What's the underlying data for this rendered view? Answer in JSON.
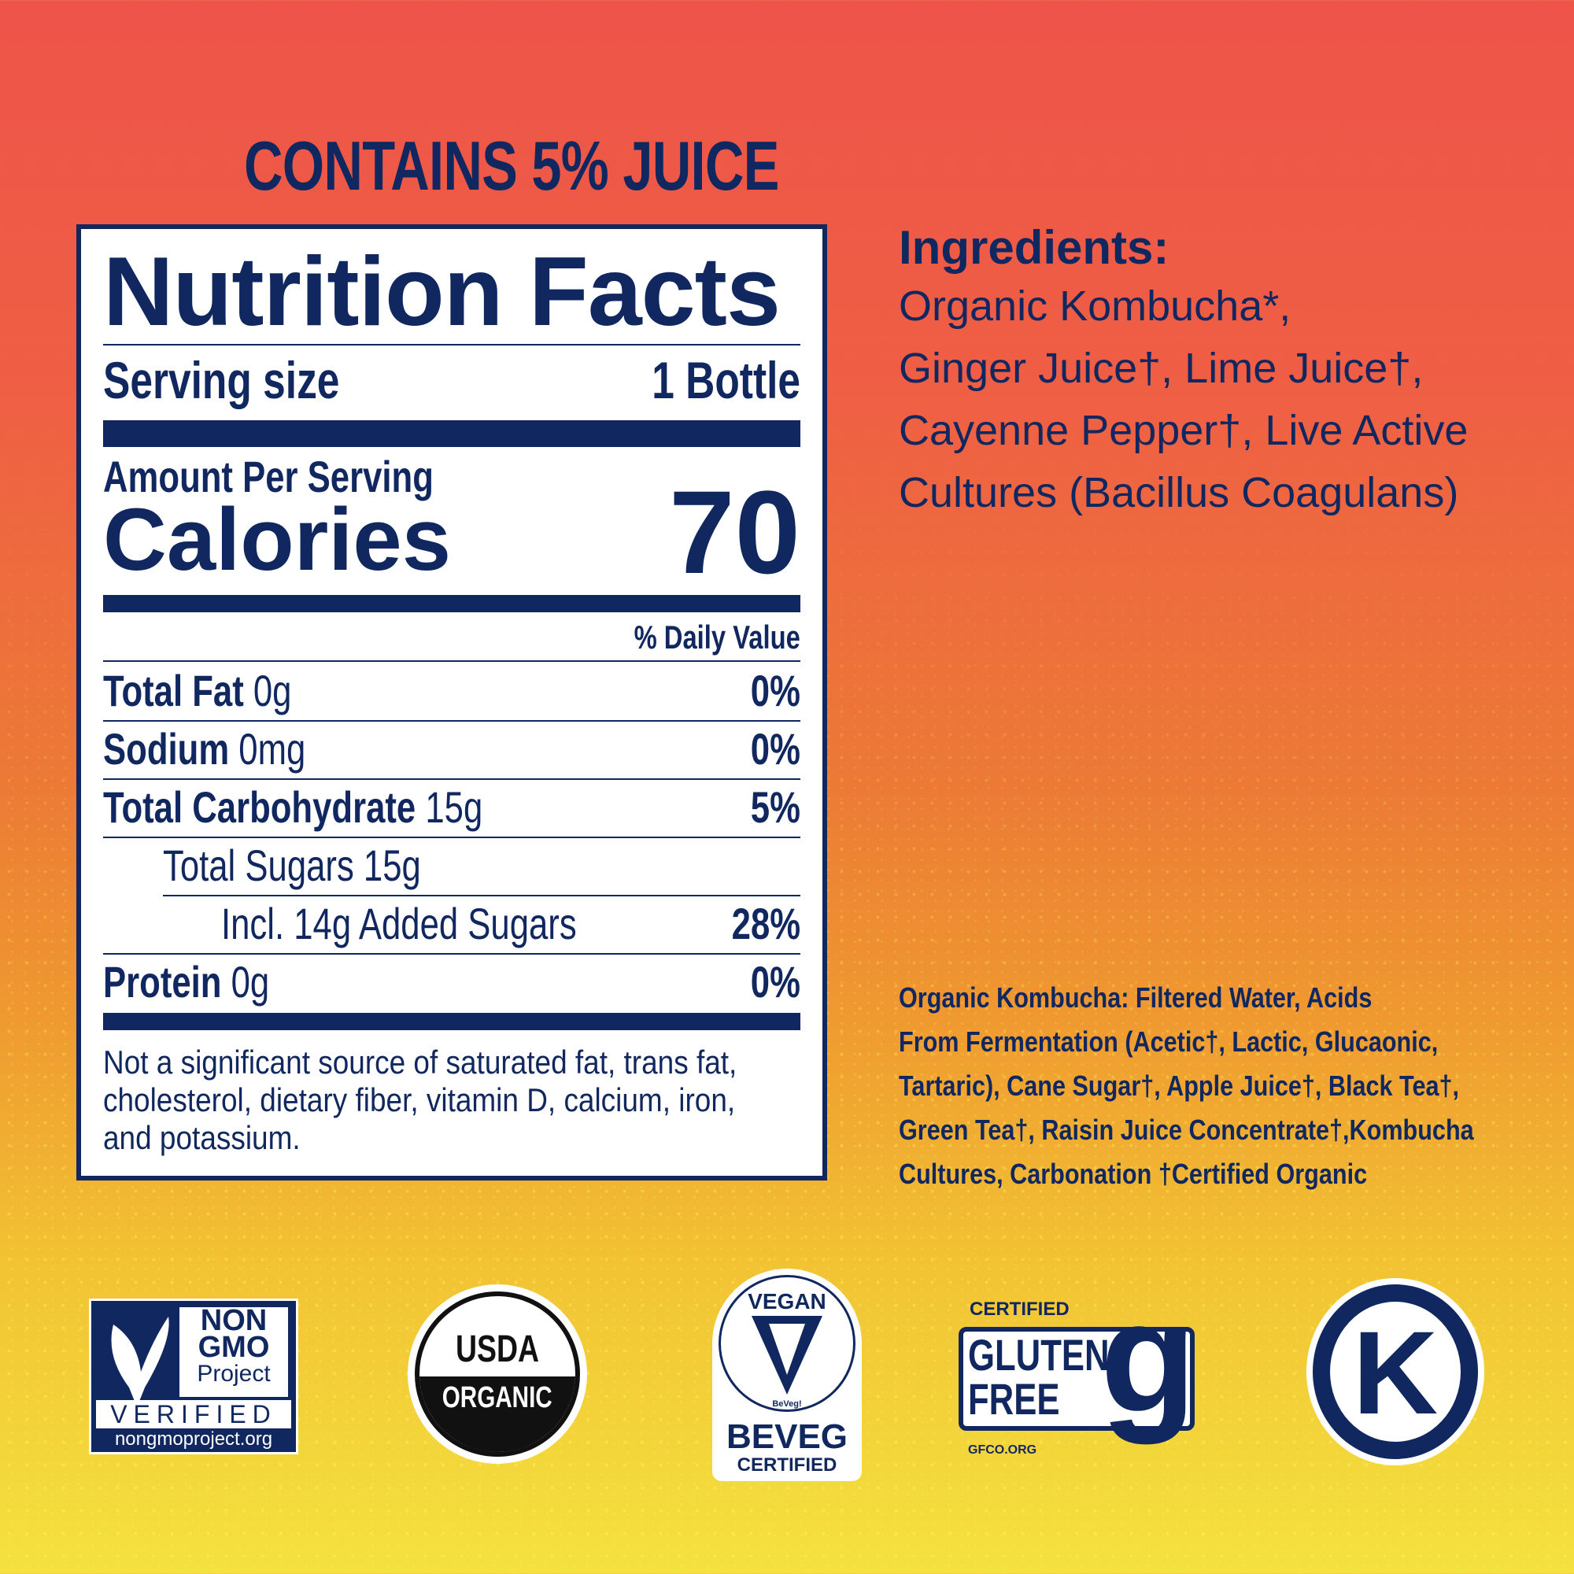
{
  "header": {
    "juice_claim": "CONTAINS 5% JUICE"
  },
  "nutrition": {
    "title": "Nutrition Facts",
    "serving_label": "Serving size",
    "serving_value": "1 Bottle",
    "amount_per_serving": "Amount Per Serving",
    "calories_label": "Calories",
    "calories_value": "70",
    "dv_header": "% Daily Value",
    "rows": [
      {
        "label": "Total Fat",
        "amount": "0g",
        "dv": "0%"
      },
      {
        "label": "Sodium",
        "amount": "0mg",
        "dv": "0%"
      },
      {
        "label": "Total Carbohydrate",
        "amount": "15g",
        "dv": "5%"
      },
      {
        "label": "Total Sugars 15g",
        "amount": "",
        "dv": ""
      },
      {
        "label": "Incl. 14g Added Sugars",
        "amount": "",
        "dv": "28%"
      },
      {
        "label": "Protein",
        "amount": "0g",
        "dv": "0%"
      }
    ],
    "footnote": [
      "Not a significant source of saturated fat, trans fat,",
      "cholesterol, dietary fiber, vitamin D, calcium, iron,",
      "and potassium."
    ]
  },
  "ingredients": {
    "heading": "Ingredients:",
    "lines": [
      "Organic Kombucha*,",
      "Ginger Juice†, Lime Juice†,",
      "Cayenne Pepper†, Live Active",
      "Cultures (Bacillus Coagulans)"
    ]
  },
  "kombucha_detail": [
    "Organic Kombucha: Filtered Water, Acids",
    "From Fermentation (Acetic†, Lactic, Glucaonic,",
    "Tartaric), Cane Sugar†, Apple Juice†, Black Tea†,",
    "Green Tea†, Raisin Juice Concentrate†,Kombucha",
    "Cultures, Carbonation †Certified Organic"
  ],
  "logos": {
    "nongmo": [
      "NON",
      "GMO",
      "Project",
      "VERIFIED",
      "nongmoproject.org"
    ],
    "usda": [
      "USDA",
      "ORGANIC"
    ],
    "vegan": [
      "VEGAN",
      "BeVeg!",
      "BEVEG",
      "CERTIFIED"
    ],
    "gluten": [
      "CERTIFIED",
      "GLUTEN",
      "FREE",
      "GFCO.ORG"
    ],
    "kosher": "K"
  },
  "colors": {
    "navy": "#10275f",
    "top": "#ee5449",
    "bottom": "#f4e23f"
  }
}
